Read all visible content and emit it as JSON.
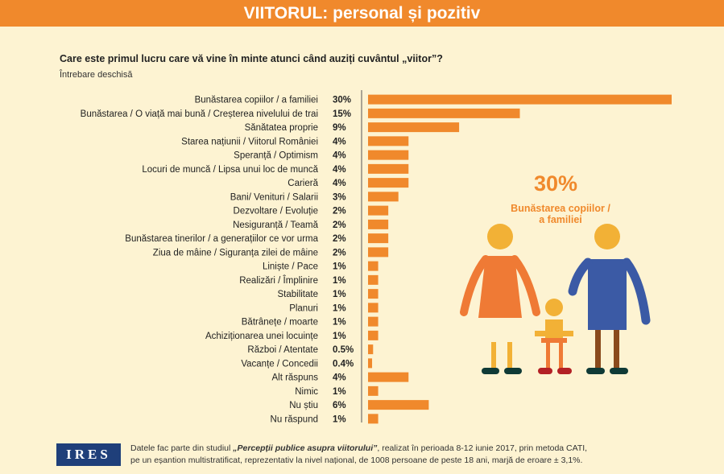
{
  "banner": {
    "title": "VIITORUL: personal și pozitiv"
  },
  "question": {
    "text": "Care este primul lucru care vă vine în minte atunci când auziți cuvântul „viitor”?",
    "subtitle": "Întrebare deschisă"
  },
  "highlight": {
    "value": "30%",
    "line1": "Bunăstarea copiilor /",
    "line2": "a familiei"
  },
  "chart_data": {
    "type": "bar",
    "orientation": "horizontal",
    "title": "Care este primul lucru care vă vine în minte atunci când auziți cuvântul „viitor”?",
    "subtitle": "Întrebare deschisă",
    "xlabel": "",
    "ylabel": "",
    "unit": "%",
    "xlim": [
      0,
      30
    ],
    "categories": [
      "Bunăstarea copiilor / a familiei",
      "Bunăstarea / O viață mai bună / Creșterea nivelului de trai",
      "Sănătatea proprie",
      "Starea națiunii / Viitorul României",
      "Speranță / Optimism",
      "Locuri de muncă / Lipsa unui loc de muncă",
      "Carieră",
      "Bani/ Venituri / Salarii",
      "Dezvoltare / Evoluție",
      "Nesiguranță / Teamă",
      "Bunăstarea tinerilor / a generațiilor ce vor urma",
      "Ziua de mâine / Siguranța zilei de mâine",
      "Liniște / Pace",
      "Realizări / Împlinire",
      "Stabilitate",
      "Planuri",
      "Bătrânețe / moarte",
      "Achiziționarea unei locuințe",
      "Război / Atentate",
      "Vacanțe / Concedii",
      "Alt răspuns",
      "Nimic",
      "Nu știu",
      "Nu răspund"
    ],
    "values": [
      30,
      15,
      9,
      4,
      4,
      4,
      4,
      3,
      2,
      2,
      2,
      2,
      1,
      1,
      1,
      1,
      1,
      1,
      0.5,
      0.4,
      4,
      1,
      6,
      1
    ],
    "value_labels": [
      "30%",
      "15%",
      "9%",
      "4%",
      "4%",
      "4%",
      "4%",
      "3%",
      "2%",
      "2%",
      "2%",
      "2%",
      "1%",
      "1%",
      "1%",
      "1%",
      "1%",
      "1%",
      "0.5%",
      "0.4%",
      "4%",
      "1%",
      "6%",
      "1%"
    ],
    "colors": {
      "bar": "#f0892c",
      "accent": "#f0892c"
    }
  },
  "footer": {
    "logo": "IRES",
    "text_prefix": "Datele fac parte din studiul ",
    "study_title": "„Percepții publice asupra viitorului”",
    "text_suffix": ", realizat în perioada 8-12 iunie 2017, prin metoda CATI,",
    "line2": "pe un eșantion multistratificat, reprezentativ la nivel național, de 1008 persoane de peste 18 ani, marjă de eroare ± 3,1%."
  }
}
